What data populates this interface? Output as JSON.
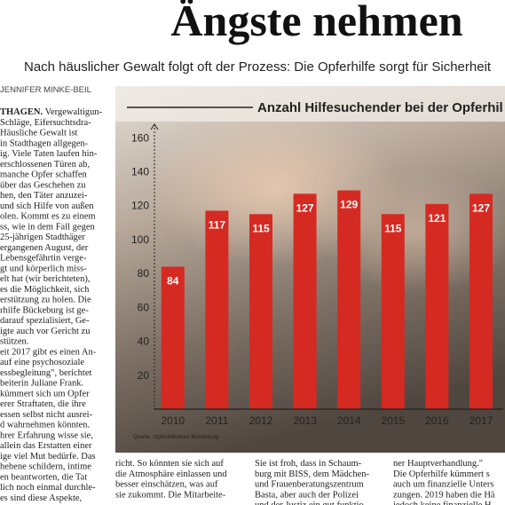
{
  "header": {
    "title": "Ängste nehmen",
    "subtitle": "Nach häuslicher Gewalt folgt oft der Prozess: Die Opferhilfe sorgt für Sicherheit",
    "author": "JENNIFER MINKE-BEIL"
  },
  "article": {
    "lead": "THAGEN.",
    "left_column": [
      "Vergewaltigun-",
      "Schläge, Eifersuchtsdra-",
      "Häusliche Gewalt ist",
      "in Stadthagen allgegen-",
      "ig. Viele Taten laufen hin-",
      "erschlossenen Türen ab,",
      "manche Opfer schaffen",
      "über das Geschehen zu",
      "hen, den Täter anzuzei-",
      "und sich Hilfe von außen",
      "olen. Kommt es zu einem",
      "ss, wie in dem Fall gegen",
      "25-jährigen Stadthäger",
      "ergangenen August, der",
      "Lebensgefährtin verge-",
      "gt und körperlich miss-",
      "elt hat (wir berichteten),",
      "es die Möglichkeit, sich",
      "erstützung zu holen. Die",
      "rhilfe Bückeburg ist ge-",
      "darauf spezialisiert, Ge-",
      "igte auch vor Gericht zu",
      "stützen.",
      "eit 2017 gibt es einen An-",
      "auf eine psychosoziale",
      "essbegleitung\", berichtet",
      "beiterin Juliane Frank.",
      "kümmert sich um Opfer",
      "erer Straftaten, die ihre",
      "essen selbst nicht ausrei-",
      "d wahrnehmen könnten.",
      "hrer Erfahrung wisse sie,",
      "allein das Erstatten einer",
      "ige viel Mut bedürfe. Das",
      "hehene schildern, intime",
      "en beantworten, die Tat",
      "lich noch einmal durchle-",
      "es sind diese Aspekte,"
    ],
    "columns": [
      [
        "richt. So könnten sie sich auf",
        "die Atmosphäre einlassen und",
        "besser einschätzen, was auf",
        "sie zukommt. Die Mitarbeite-"
      ],
      [
        "Sie ist froh, dass in Schaum-",
        "burg mit BISS, dem Mädchen-",
        "und Frauenberatungszentrum",
        "Basta, aber auch der Polizei",
        "und der Justiz ein gut funktio-"
      ],
      [
        "ner Hauptverhandlung.\"",
        "Die Opferhilfe kümmert s",
        "auch um finanzielle Unters",
        "zungen. 2019 haben die Hä",
        "jedoch keine finanzielle H"
      ]
    ]
  },
  "chart_data": {
    "type": "bar",
    "title": "Anzahl Hilfesuchender bei der Opferhil",
    "source": "Quelle: Opferhilfebüro Bückeburg",
    "categories": [
      "2010",
      "2011",
      "2012",
      "2013",
      "2014",
      "2015",
      "2016",
      "2017"
    ],
    "values": [
      84,
      117,
      115,
      127,
      129,
      115,
      121,
      127
    ],
    "color": "#d52a22",
    "ylim": [
      0,
      168
    ],
    "yticks": [
      20,
      40,
      60,
      80,
      100,
      120,
      140,
      160
    ]
  }
}
